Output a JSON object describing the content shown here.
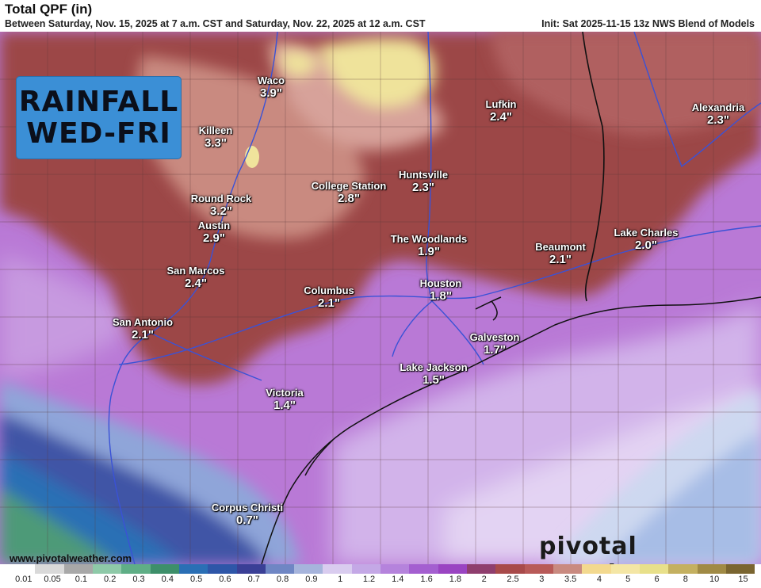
{
  "header": {
    "title": "Total QPF (in)",
    "subtitle": "Between Saturday, Nov. 15, 2025 at 7 a.m. CST and Saturday, Nov. 22, 2025 at 12 a.m. CST",
    "init": "Init: Sat 2025-11-15 13z NWS Blend of Models"
  },
  "badge": {
    "line1": "RAINFALL",
    "line2": "WED-FRI"
  },
  "cities": [
    {
      "name": "Waco",
      "value": "3.9\""
    },
    {
      "name": "Killeen",
      "value": "3.3\""
    },
    {
      "name": "Lufkin",
      "value": "2.4\""
    },
    {
      "name": "Alexandria",
      "value": "2.3\""
    },
    {
      "name": "College Station",
      "value": "2.8\""
    },
    {
      "name": "Huntsville",
      "value": "2.3\""
    },
    {
      "name": "Round Rock",
      "value": "3.2\""
    },
    {
      "name": "Austin",
      "value": "2.9\""
    },
    {
      "name": "The Woodlands",
      "value": "1.9\""
    },
    {
      "name": "Beaumont",
      "value": "2.1\""
    },
    {
      "name": "Lake Charles",
      "value": "2.0\""
    },
    {
      "name": "San Marcos",
      "value": "2.4\""
    },
    {
      "name": "Columbus",
      "value": "2.1\""
    },
    {
      "name": "Houston",
      "value": "1.8\""
    },
    {
      "name": "San Antonio",
      "value": "2.1\""
    },
    {
      "name": "Galveston",
      "value": "1.7\""
    },
    {
      "name": "Lake Jackson",
      "value": "1.5\""
    },
    {
      "name": "Victoria",
      "value": "1.4\""
    },
    {
      "name": "Corpus Christi",
      "value": "0.7\""
    }
  ],
  "footer": {
    "url": "www.pivotalweather.com",
    "brand": "pivotal weather"
  },
  "legend": {
    "labels": [
      "0.01",
      "0.05",
      "0.1",
      "0.2",
      "0.3",
      "0.4",
      "0.5",
      "0.6",
      "0.7",
      "0.8",
      "0.9",
      "1",
      "1.2",
      "1.4",
      "1.6",
      "1.8",
      "2",
      "2.5",
      "3",
      "3.5",
      "4",
      "5",
      "6",
      "8",
      "10",
      "15"
    ],
    "colors": [
      "#ffffff",
      "#d9d9d9",
      "#a8a8a8",
      "#8ec9a8",
      "#5fae86",
      "#3d8f6a",
      "#2a6fb5",
      "#2e56a8",
      "#3a3f96",
      "#6f86c4",
      "#a6b4dc",
      "#d9ccef",
      "#c4a8e6",
      "#b583dc",
      "#a45fd0",
      "#9a44c2",
      "#8f3e6e",
      "#a84a4a",
      "#b85a58",
      "#c98a80",
      "#f3d98f",
      "#f4e6a5",
      "#e8e08a",
      "#c4b060",
      "#a08a45",
      "#7a6530"
    ]
  }
}
